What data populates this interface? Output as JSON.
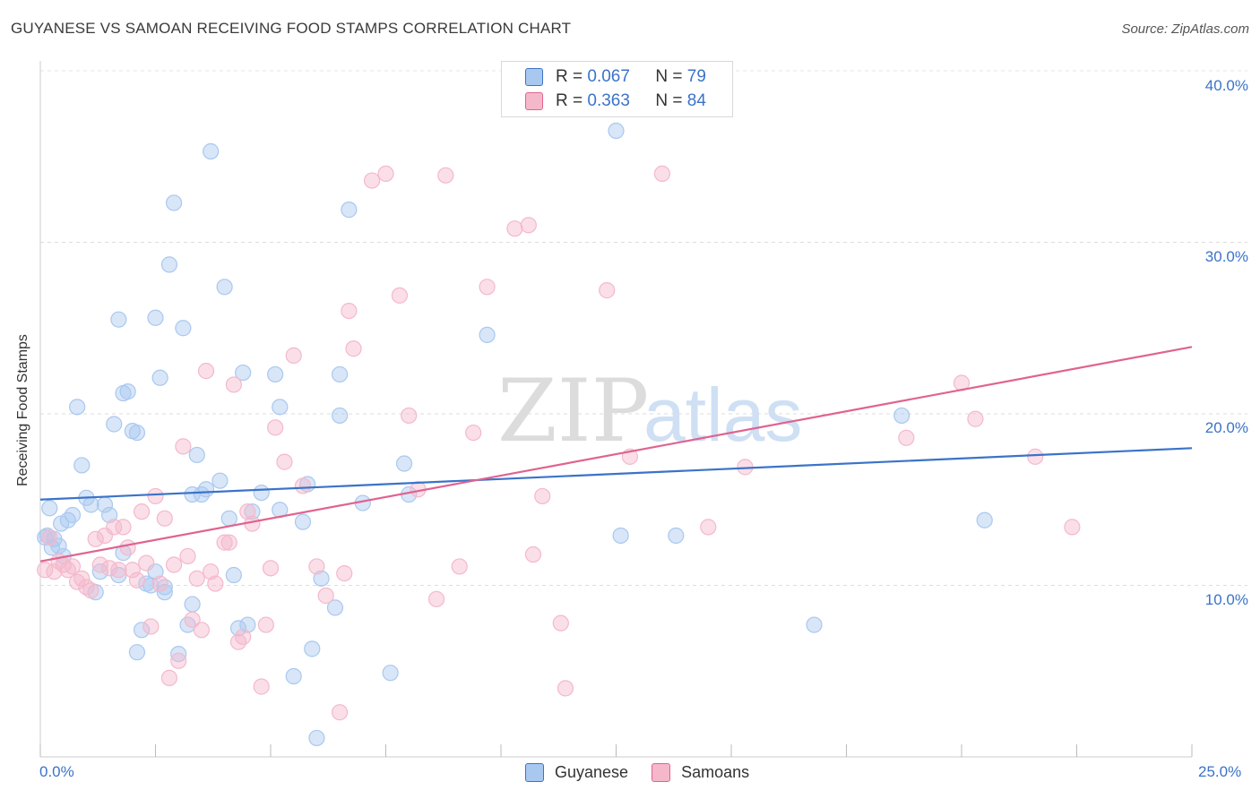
{
  "title": "GUYANESE VS SAMOAN RECEIVING FOOD STAMPS CORRELATION CHART",
  "source": "Source: ZipAtlas.com",
  "watermark": {
    "zip": "ZIP",
    "atlas": "atlas"
  },
  "legend": {
    "rows": [
      {
        "r_label": "R =",
        "r_value": "0.067",
        "n_label": "N =",
        "n_value": "79",
        "color": "#a9c8f0"
      },
      {
        "r_label": "R =",
        "r_value": "0.363",
        "n_label": "N =",
        "n_value": "84",
        "color": "#f5b8cb"
      }
    ],
    "bottom": [
      {
        "label": "Guyanese",
        "color": "#a9c8f0"
      },
      {
        "label": "Samoans",
        "color": "#f5b8cb"
      }
    ]
  },
  "chart_data": {
    "type": "scatter",
    "title": "GUYANESE VS SAMOAN RECEIVING FOOD STAMPS CORRELATION CHART",
    "xlabel": "",
    "ylabel": "Receiving Food Stamps",
    "xlim": [
      0,
      25
    ],
    "ylim": [
      0,
      40
    ],
    "x_tick_labels": {
      "min": "0.0%",
      "max": "25.0%"
    },
    "y_ticks": [
      {
        "value": 10,
        "label": "10.0%"
      },
      {
        "value": 20,
        "label": "20.0%"
      },
      {
        "value": 30,
        "label": "30.0%"
      },
      {
        "value": 40,
        "label": "40.0%"
      }
    ],
    "grid": true,
    "series": [
      {
        "name": "Guyanese",
        "color": "#3b73c8",
        "fill": "#a9c8f0",
        "trend": {
          "x": [
            0,
            25
          ],
          "y": [
            15.0,
            18.0
          ]
        },
        "points": [
          [
            0.1,
            12.8
          ],
          [
            0.2,
            14.5
          ],
          [
            0.3,
            12.7
          ],
          [
            0.4,
            12.3
          ],
          [
            0.5,
            11.7
          ],
          [
            0.6,
            13.8
          ],
          [
            0.7,
            14.1
          ],
          [
            0.8,
            20.4
          ],
          [
            0.9,
            17.0
          ],
          [
            1.0,
            15.1
          ],
          [
            1.1,
            14.7
          ],
          [
            1.2,
            9.6
          ],
          [
            1.3,
            10.8
          ],
          [
            1.4,
            14.7
          ],
          [
            1.5,
            14.1
          ],
          [
            1.6,
            19.4
          ],
          [
            1.7,
            10.6
          ],
          [
            1.8,
            11.9
          ],
          [
            1.7,
            25.5
          ],
          [
            1.8,
            21.2
          ],
          [
            1.9,
            21.3
          ],
          [
            2.0,
            19.0
          ],
          [
            2.1,
            18.9
          ],
          [
            2.1,
            6.1
          ],
          [
            2.2,
            7.4
          ],
          [
            2.3,
            10.1
          ],
          [
            2.4,
            10.0
          ],
          [
            2.5,
            10.8
          ],
          [
            2.5,
            25.6
          ],
          [
            2.6,
            22.1
          ],
          [
            2.7,
            9.6
          ],
          [
            2.7,
            9.9
          ],
          [
            2.8,
            28.7
          ],
          [
            2.9,
            32.3
          ],
          [
            3.0,
            6.0
          ],
          [
            3.1,
            25.0
          ],
          [
            3.2,
            7.7
          ],
          [
            3.3,
            15.3
          ],
          [
            3.3,
            8.9
          ],
          [
            3.4,
            17.6
          ],
          [
            3.5,
            15.3
          ],
          [
            3.6,
            15.6
          ],
          [
            3.7,
            35.3
          ],
          [
            3.9,
            16.1
          ],
          [
            4.0,
            27.4
          ],
          [
            4.1,
            13.9
          ],
          [
            4.2,
            10.6
          ],
          [
            4.3,
            7.5
          ],
          [
            4.4,
            22.4
          ],
          [
            4.5,
            7.7
          ],
          [
            4.6,
            14.3
          ],
          [
            4.8,
            15.4
          ],
          [
            5.1,
            22.3
          ],
          [
            5.2,
            20.4
          ],
          [
            5.2,
            14.4
          ],
          [
            5.5,
            4.7
          ],
          [
            5.7,
            13.7
          ],
          [
            5.8,
            15.9
          ],
          [
            5.9,
            6.3
          ],
          [
            6.0,
            1.1
          ],
          [
            6.1,
            10.4
          ],
          [
            6.4,
            8.7
          ],
          [
            6.5,
            19.9
          ],
          [
            6.5,
            22.3
          ],
          [
            6.7,
            31.9
          ],
          [
            7.0,
            14.8
          ],
          [
            7.6,
            4.9
          ],
          [
            7.9,
            17.1
          ],
          [
            8.0,
            15.3
          ],
          [
            9.7,
            24.6
          ],
          [
            12.5,
            36.5
          ],
          [
            12.6,
            12.9
          ],
          [
            13.8,
            12.9
          ],
          [
            16.8,
            7.7
          ],
          [
            18.7,
            19.9
          ],
          [
            20.5,
            13.8
          ],
          [
            0.15,
            12.9
          ],
          [
            0.45,
            13.6
          ],
          [
            0.25,
            12.2
          ]
        ]
      },
      {
        "name": "Samoans",
        "color": "#e0638f",
        "fill": "#f5b8cb",
        "trend": {
          "x": [
            0,
            25
          ],
          "y": [
            11.4,
            23.9
          ]
        },
        "points": [
          [
            0.1,
            10.9
          ],
          [
            0.2,
            12.8
          ],
          [
            0.3,
            10.8
          ],
          [
            0.4,
            11.4
          ],
          [
            0.5,
            11.2
          ],
          [
            0.6,
            10.9
          ],
          [
            0.7,
            11.1
          ],
          [
            0.8,
            10.2
          ],
          [
            0.9,
            10.4
          ],
          [
            1.0,
            9.9
          ],
          [
            1.1,
            9.7
          ],
          [
            1.2,
            12.7
          ],
          [
            1.3,
            11.2
          ],
          [
            1.4,
            12.9
          ],
          [
            1.5,
            11.0
          ],
          [
            1.6,
            13.4
          ],
          [
            1.7,
            10.9
          ],
          [
            1.8,
            13.4
          ],
          [
            1.9,
            12.2
          ],
          [
            2.0,
            10.9
          ],
          [
            2.1,
            10.3
          ],
          [
            2.2,
            14.3
          ],
          [
            2.3,
            11.3
          ],
          [
            2.4,
            7.6
          ],
          [
            2.5,
            15.2
          ],
          [
            2.6,
            10.1
          ],
          [
            2.7,
            13.9
          ],
          [
            2.8,
            4.6
          ],
          [
            2.9,
            11.2
          ],
          [
            3.0,
            5.6
          ],
          [
            3.1,
            18.1
          ],
          [
            3.2,
            11.7
          ],
          [
            3.3,
            8.0
          ],
          [
            3.4,
            10.4
          ],
          [
            3.5,
            7.4
          ],
          [
            3.6,
            22.5
          ],
          [
            3.7,
            10.8
          ],
          [
            3.8,
            10.1
          ],
          [
            4.0,
            12.5
          ],
          [
            4.1,
            12.5
          ],
          [
            4.2,
            21.7
          ],
          [
            4.3,
            6.7
          ],
          [
            4.4,
            7.0
          ],
          [
            4.5,
            14.3
          ],
          [
            4.6,
            13.6
          ],
          [
            4.8,
            4.1
          ],
          [
            4.9,
            7.7
          ],
          [
            5.0,
            11.0
          ],
          [
            5.1,
            19.2
          ],
          [
            5.3,
            17.2
          ],
          [
            5.5,
            23.4
          ],
          [
            5.7,
            15.8
          ],
          [
            6.0,
            11.1
          ],
          [
            6.2,
            9.4
          ],
          [
            6.5,
            2.6
          ],
          [
            6.6,
            10.7
          ],
          [
            6.7,
            26.0
          ],
          [
            6.8,
            23.8
          ],
          [
            7.2,
            33.6
          ],
          [
            7.5,
            34.0
          ],
          [
            7.8,
            26.9
          ],
          [
            8.0,
            19.9
          ],
          [
            8.2,
            15.6
          ],
          [
            8.6,
            9.2
          ],
          [
            8.8,
            33.9
          ],
          [
            9.1,
            11.1
          ],
          [
            9.4,
            18.9
          ],
          [
            9.7,
            27.4
          ],
          [
            10.3,
            30.8
          ],
          [
            10.6,
            31.0
          ],
          [
            10.7,
            11.8
          ],
          [
            10.9,
            15.2
          ],
          [
            11.3,
            7.8
          ],
          [
            11.4,
            4.0
          ],
          [
            12.3,
            27.2
          ],
          [
            12.8,
            17.5
          ],
          [
            13.5,
            34.0
          ],
          [
            14.5,
            13.4
          ],
          [
            15.3,
            16.9
          ],
          [
            18.8,
            18.6
          ],
          [
            20.0,
            21.8
          ],
          [
            20.3,
            19.7
          ],
          [
            21.6,
            17.5
          ],
          [
            22.4,
            13.4
          ]
        ]
      }
    ]
  }
}
